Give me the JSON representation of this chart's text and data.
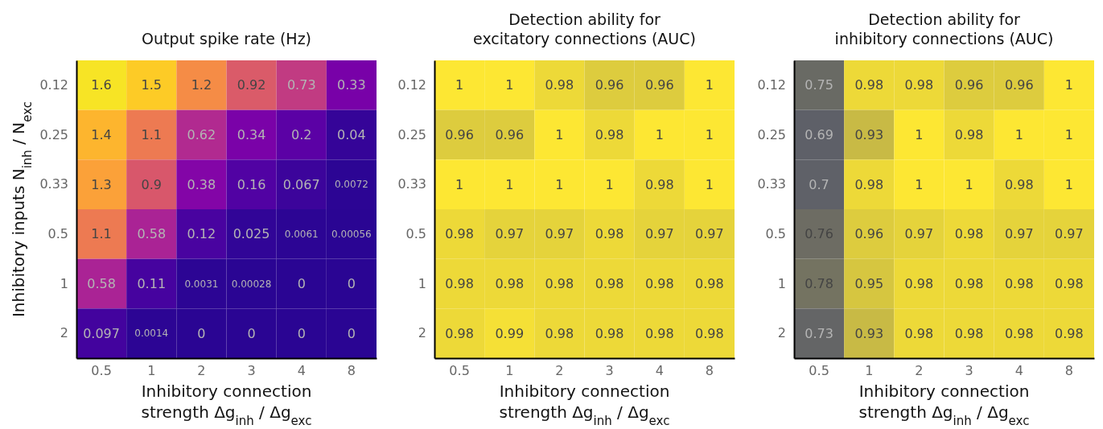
{
  "chart_data": [
    {
      "type": "heatmap",
      "data_labels": true,
      "title": "Output spike rate (Hz)",
      "xlabel": "Inhibitory connection\nstrength  Δg$_{inh}$ / Δg$_{exc}$",
      "ylabel": "Inhibitory inputs  N$_{inh}$ / N$_{exc}$",
      "categories": [
        "0.5",
        "1",
        "2",
        "3",
        "4",
        "8"
      ],
      "y_categories": [
        "0.12",
        "0.25",
        "0.33",
        "0.5",
        "1",
        "2"
      ],
      "cells": [
        [
          1.6,
          1.5,
          1.2,
          0.92,
          0.73,
          0.33
        ],
        [
          1.4,
          1.1,
          0.62,
          0.34,
          0.2,
          0.04
        ],
        [
          1.3,
          0.9,
          0.38,
          0.16,
          0.067,
          0.0072
        ],
        [
          1.1,
          0.58,
          0.12,
          0.025,
          0.0061,
          0.00056
        ],
        [
          0.58,
          0.11,
          0.0031,
          0.00028,
          0,
          0
        ],
        [
          0.097,
          0.0014,
          0,
          0,
          0,
          0
        ]
      ]
    },
    {
      "type": "heatmap",
      "data_labels": true,
      "title": "Detection ability for\nexcitatory connections (AUC)",
      "xlabel": "Inhibitory connection\nstrength  Δg$_{inh}$ / Δg$_{exc}$",
      "categories": [
        "0.5",
        "1",
        "2",
        "3",
        "4",
        "8"
      ],
      "y_categories": [
        "0.12",
        "0.25",
        "0.33",
        "0.5",
        "1",
        "2"
      ],
      "cells": [
        [
          1,
          1,
          0.98,
          0.96,
          0.96,
          1
        ],
        [
          0.96,
          0.96,
          1,
          0.98,
          1,
          1
        ],
        [
          1,
          1,
          1,
          1,
          0.98,
          1
        ],
        [
          0.98,
          0.97,
          0.97,
          0.98,
          0.97,
          0.97
        ],
        [
          0.98,
          0.98,
          0.98,
          0.98,
          0.98,
          0.98
        ],
        [
          0.98,
          0.99,
          0.98,
          0.98,
          0.98,
          0.98
        ]
      ]
    },
    {
      "type": "heatmap",
      "data_labels": true,
      "title": "Detection ability for\ninhibitory connections (AUC)",
      "xlabel": "Inhibitory connection\nstrength  Δg$_{inh}$ / Δg$_{exc}$",
      "categories": [
        "0.5",
        "1",
        "2",
        "3",
        "4",
        "8"
      ],
      "y_categories": [
        "0.12",
        "0.25",
        "0.33",
        "0.5",
        "1",
        "2"
      ],
      "cells": [
        [
          0.75,
          0.98,
          0.98,
          0.96,
          0.96,
          1
        ],
        [
          0.69,
          0.93,
          1,
          0.98,
          1,
          1
        ],
        [
          0.7,
          0.98,
          1,
          1,
          0.98,
          1
        ],
        [
          0.76,
          0.96,
          0.97,
          0.98,
          0.97,
          0.97
        ],
        [
          0.78,
          0.95,
          0.98,
          0.98,
          0.98,
          0.98
        ],
        [
          0.73,
          0.93,
          0.98,
          0.98,
          0.98,
          0.98
        ]
      ]
    }
  ]
}
